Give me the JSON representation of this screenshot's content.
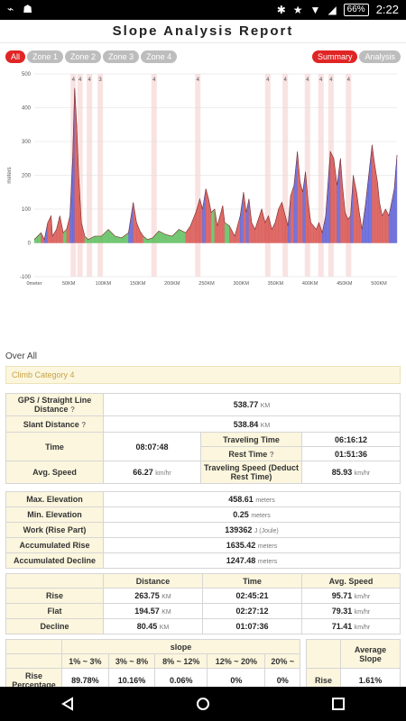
{
  "status": {
    "time": "2:22",
    "battery": "66%"
  },
  "header": {
    "title": "Slope Analysis Report"
  },
  "tabs_left": [
    "All",
    "Zone 1",
    "Zone 2",
    "Zone 3",
    "Zone 4"
  ],
  "tabs_right": [
    "Summary",
    "Analysis"
  ],
  "chart_data": {
    "type": "area",
    "ylabel": "meters",
    "ylim": [
      -100,
      500
    ],
    "yticks": [
      "500",
      "400",
      "300",
      "200",
      "100",
      "0",
      "-100"
    ],
    "xticks": [
      "0meter",
      "50KM",
      "100KM",
      "150KM",
      "200KM",
      "250KM",
      "300KM",
      "350KM",
      "400KM",
      "450KM",
      "500KM"
    ],
    "category_markers": [
      {
        "x": 58,
        "label": "4"
      },
      {
        "x": 68,
        "label": "4"
      },
      {
        "x": 82,
        "label": "4"
      },
      {
        "x": 98,
        "label": "3"
      },
      {
        "x": 178,
        "label": "4"
      },
      {
        "x": 243,
        "label": "4"
      },
      {
        "x": 347,
        "label": "4"
      },
      {
        "x": 373,
        "label": "4"
      },
      {
        "x": 406,
        "label": "4"
      },
      {
        "x": 426,
        "label": "4"
      },
      {
        "x": 441,
        "label": "4"
      },
      {
        "x": 467,
        "label": "4"
      }
    ],
    "profile": [
      {
        "x": 0,
        "y": 10
      },
      {
        "x": 5,
        "y": 20
      },
      {
        "x": 10,
        "y": 30
      },
      {
        "x": 15,
        "y": 10
      },
      {
        "x": 20,
        "y": 60
      },
      {
        "x": 25,
        "y": 80
      },
      {
        "x": 27,
        "y": 20
      },
      {
        "x": 33,
        "y": 40
      },
      {
        "x": 38,
        "y": 80
      },
      {
        "x": 43,
        "y": 30
      },
      {
        "x": 48,
        "y": 40
      },
      {
        "x": 53,
        "y": 80
      },
      {
        "x": 57,
        "y": 250
      },
      {
        "x": 60,
        "y": 458
      },
      {
        "x": 63,
        "y": 350
      },
      {
        "x": 66,
        "y": 200
      },
      {
        "x": 70,
        "y": 60
      },
      {
        "x": 75,
        "y": 20
      },
      {
        "x": 80,
        "y": 10
      },
      {
        "x": 90,
        "y": 20
      },
      {
        "x": 100,
        "y": 20
      },
      {
        "x": 110,
        "y": 40
      },
      {
        "x": 120,
        "y": 20
      },
      {
        "x": 130,
        "y": 15
      },
      {
        "x": 140,
        "y": 30
      },
      {
        "x": 147,
        "y": 120
      },
      {
        "x": 152,
        "y": 60
      },
      {
        "x": 157,
        "y": 35
      },
      {
        "x": 162,
        "y": 20
      },
      {
        "x": 168,
        "y": 10
      },
      {
        "x": 176,
        "y": 15
      },
      {
        "x": 185,
        "y": 35
      },
      {
        "x": 195,
        "y": 25
      },
      {
        "x": 205,
        "y": 20
      },
      {
        "x": 215,
        "y": 40
      },
      {
        "x": 225,
        "y": 30
      },
      {
        "x": 232,
        "y": 50
      },
      {
        "x": 240,
        "y": 90
      },
      {
        "x": 246,
        "y": 130
      },
      {
        "x": 250,
        "y": 100
      },
      {
        "x": 255,
        "y": 160
      },
      {
        "x": 259,
        "y": 130
      },
      {
        "x": 263,
        "y": 90
      },
      {
        "x": 268,
        "y": 100
      },
      {
        "x": 272,
        "y": 50
      },
      {
        "x": 276,
        "y": 80
      },
      {
        "x": 280,
        "y": 110
      },
      {
        "x": 283,
        "y": 60
      },
      {
        "x": 290,
        "y": 50
      },
      {
        "x": 298,
        "y": 20
      },
      {
        "x": 306,
        "y": 80
      },
      {
        "x": 311,
        "y": 150
      },
      {
        "x": 315,
        "y": 90
      },
      {
        "x": 319,
        "y": 130
      },
      {
        "x": 323,
        "y": 60
      },
      {
        "x": 328,
        "y": 40
      },
      {
        "x": 333,
        "y": 70
      },
      {
        "x": 338,
        "y": 100
      },
      {
        "x": 343,
        "y": 60
      },
      {
        "x": 348,
        "y": 80
      },
      {
        "x": 353,
        "y": 40
      },
      {
        "x": 358,
        "y": 60
      },
      {
        "x": 363,
        "y": 100
      },
      {
        "x": 368,
        "y": 120
      },
      {
        "x": 373,
        "y": 80
      },
      {
        "x": 377,
        "y": 50
      },
      {
        "x": 381,
        "y": 140
      },
      {
        "x": 386,
        "y": 170
      },
      {
        "x": 391,
        "y": 270
      },
      {
        "x": 395,
        "y": 180
      },
      {
        "x": 399,
        "y": 150
      },
      {
        "x": 403,
        "y": 210
      },
      {
        "x": 407,
        "y": 120
      },
      {
        "x": 411,
        "y": 60
      },
      {
        "x": 415,
        "y": 50
      },
      {
        "x": 419,
        "y": 40
      },
      {
        "x": 423,
        "y": 60
      },
      {
        "x": 428,
        "y": 30
      },
      {
        "x": 433,
        "y": 80
      },
      {
        "x": 440,
        "y": 270
      },
      {
        "x": 445,
        "y": 250
      },
      {
        "x": 450,
        "y": 170
      },
      {
        "x": 455,
        "y": 250
      },
      {
        "x": 458,
        "y": 170
      },
      {
        "x": 462,
        "y": 90
      },
      {
        "x": 466,
        "y": 70
      },
      {
        "x": 470,
        "y": 80
      },
      {
        "x": 474,
        "y": 200
      },
      {
        "x": 479,
        "y": 150
      },
      {
        "x": 483,
        "y": 90
      },
      {
        "x": 487,
        "y": 40
      },
      {
        "x": 492,
        "y": 110
      },
      {
        "x": 497,
        "y": 200
      },
      {
        "x": 502,
        "y": 290
      },
      {
        "x": 506,
        "y": 230
      },
      {
        "x": 510,
        "y": 180
      },
      {
        "x": 513,
        "y": 120
      },
      {
        "x": 517,
        "y": 80
      },
      {
        "x": 522,
        "y": 100
      },
      {
        "x": 527,
        "y": 80
      },
      {
        "x": 531,
        "y": 120
      },
      {
        "x": 535,
        "y": 160
      },
      {
        "x": 539,
        "y": 260
      }
    ]
  },
  "overall_label": "Over All",
  "climb_category": "Climb Category 4",
  "summary1": {
    "gps_label": "GPS / Straight Line Distance",
    "gps_value": "538.77",
    "gps_unit": "KM",
    "slant_label": "Slant Distance",
    "slant_value": "538.84",
    "slant_unit": "KM",
    "time_label": "Time",
    "time_value": "08:07:48",
    "traveling_time_label": "Traveling Time",
    "traveling_time_value": "06:16:12",
    "rest_time_label": "Rest Time",
    "rest_time_value": "01:51:36",
    "avg_speed_label": "Avg. Speed",
    "avg_speed_value": "66.27",
    "avg_speed_unit": "km/hr",
    "traveling_speed_label": "Traveling Speed (Deduct Rest Time)",
    "traveling_speed_value": "85.93",
    "traveling_speed_unit": "km/hr"
  },
  "summary2": {
    "max_elev_label": "Max. Elevation",
    "max_elev_value": "458.61",
    "min_elev_label": "Min. Elevation",
    "min_elev_value": "0.25",
    "meters_unit": "meters",
    "work_label": "Work (Rise Part)",
    "work_value": "139362",
    "work_unit": "J (Joule)",
    "acc_rise_label": "Accumulated Rise",
    "acc_rise_value": "1635.42",
    "acc_decline_label": "Accumulated Decline",
    "acc_decline_value": "1247.48"
  },
  "rfd": {
    "headers": [
      "Distance",
      "Time",
      "Avg. Speed"
    ],
    "rows": [
      {
        "label": "Rise",
        "distance": "263.75",
        "time": "02:45:21",
        "speed": "95.71"
      },
      {
        "label": "Flat",
        "distance": "194.57",
        "time": "02:27:12",
        "speed": "79.31"
      },
      {
        "label": "Decline",
        "distance": "80.45",
        "time": "01:07:36",
        "speed": "71.41"
      }
    ],
    "km_unit": "KM",
    "speed_unit": "km/hr"
  },
  "slope": {
    "title": "slope",
    "ranges": [
      "1% ~ 3%",
      "3% ~ 8%",
      "8% ~ 12%",
      "12% ~ 20%",
      "20% ~"
    ],
    "row_label": "Rise Percentage",
    "values": [
      "89.78%",
      "10.16%",
      "0.06%",
      "0%",
      "0%"
    ],
    "avg_title": "Average Slope",
    "avg_row_label": "Rise",
    "avg_value": "1.61%"
  }
}
